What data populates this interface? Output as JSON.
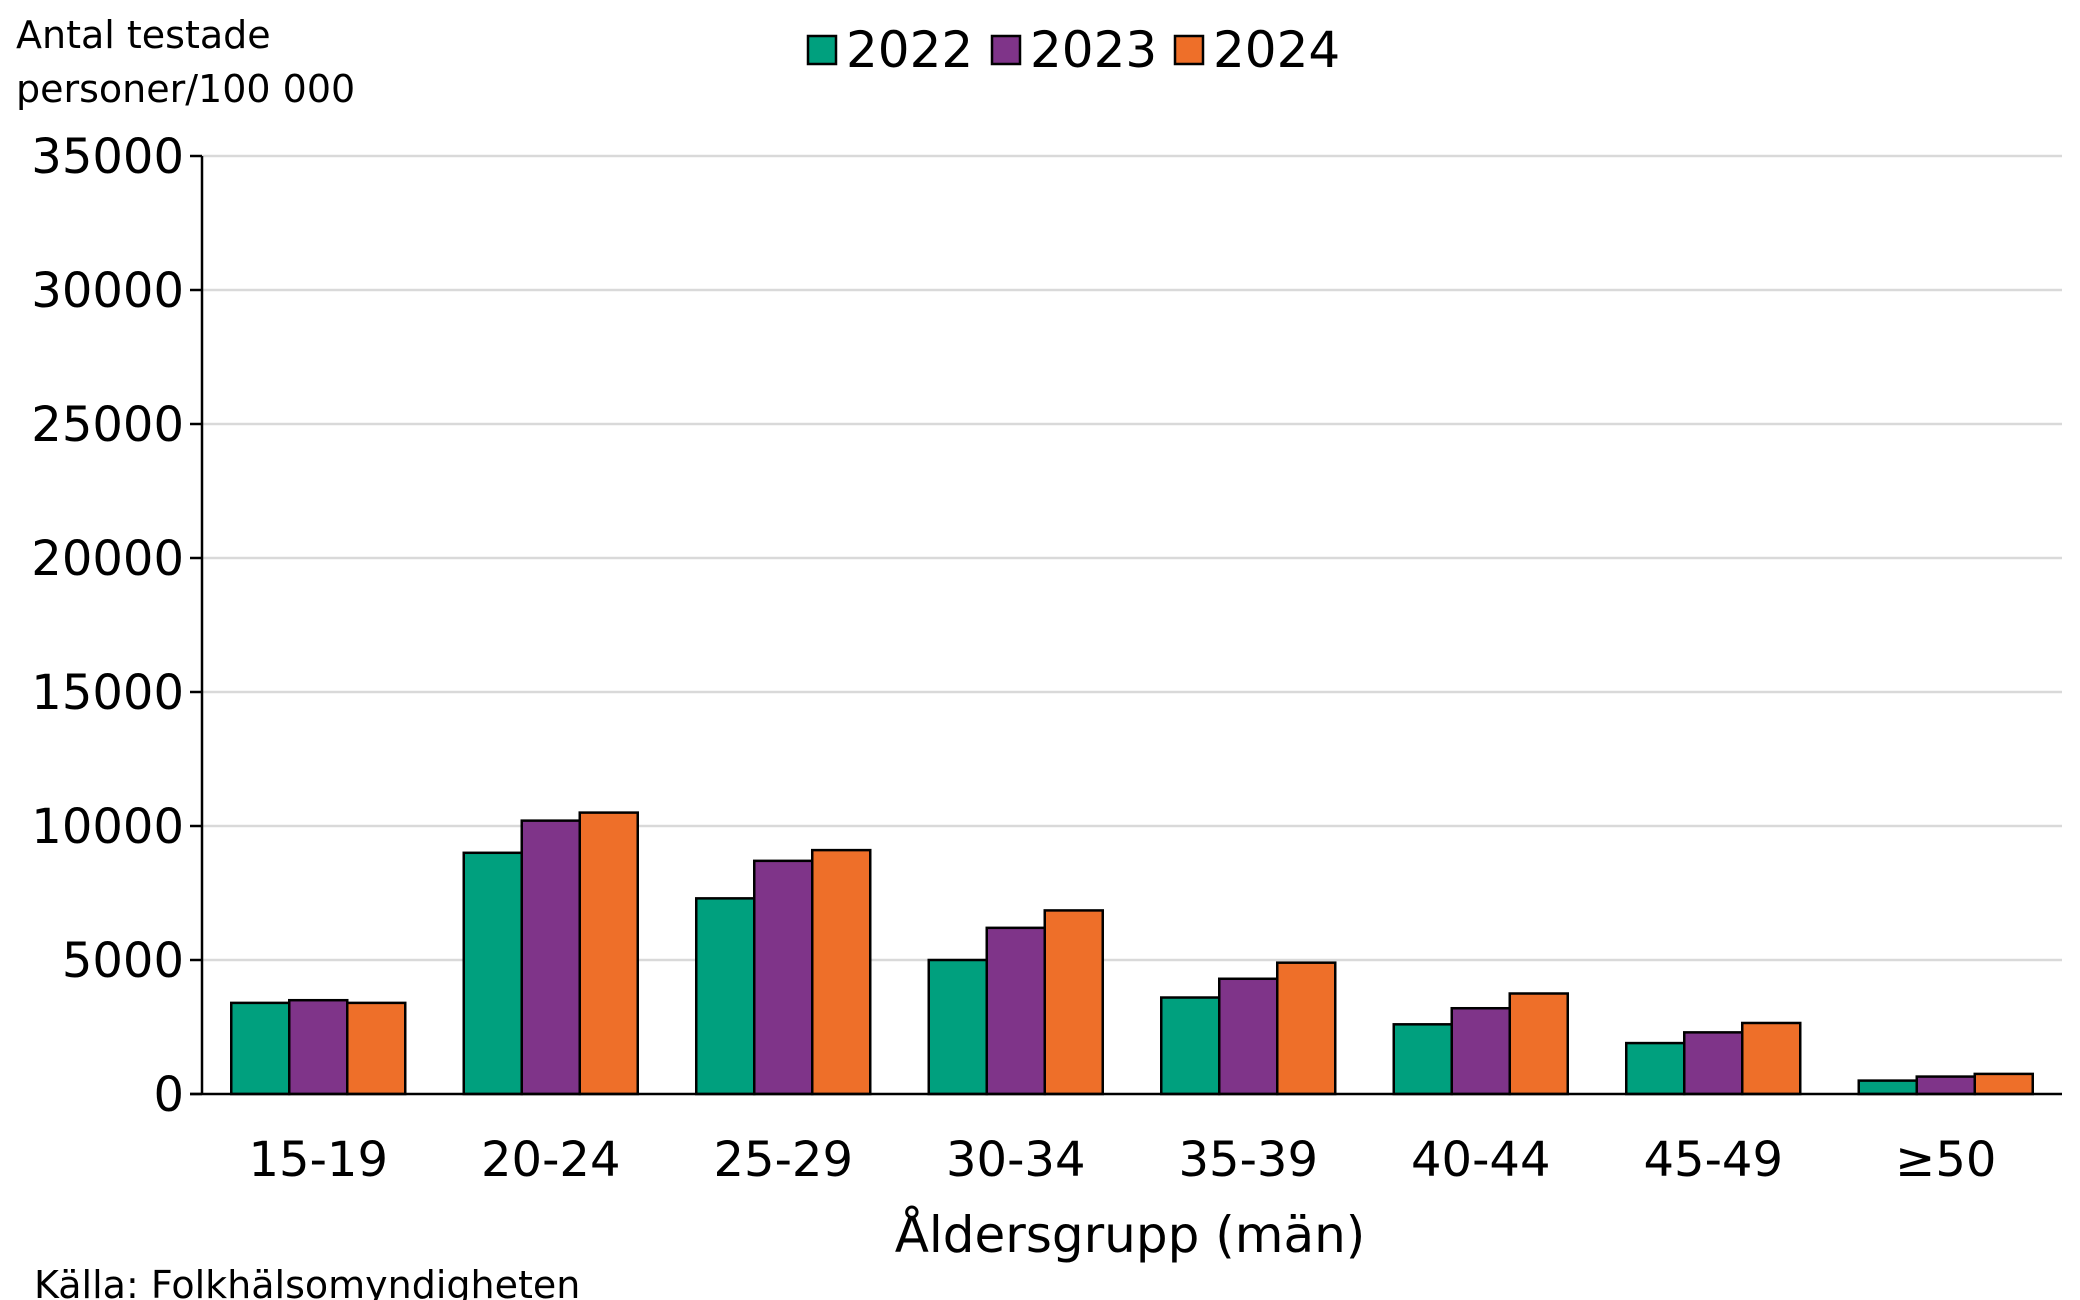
{
  "chart_data": {
    "type": "bar",
    "title": "",
    "ylabel_lines": [
      "Antal testade",
      "personer/100 000"
    ],
    "xlabel": "Åldersgrupp (män)",
    "source": "Källa: Folkhälsomyndigheten",
    "categories": [
      "15-19",
      "20-24",
      "25-29",
      "30-34",
      "35-39",
      "40-44",
      "45-49",
      "≥50"
    ],
    "series": [
      {
        "name": "2022",
        "color": "#00A07E",
        "values": [
          3400,
          9000,
          7300,
          5000,
          3600,
          2600,
          1900,
          500
        ]
      },
      {
        "name": "2023",
        "color": "#7F3489",
        "values": [
          3500,
          10200,
          8700,
          6200,
          4300,
          3200,
          2300,
          650
        ]
      },
      {
        "name": "2024",
        "color": "#EE6F29",
        "values": [
          3400,
          10500,
          9100,
          6850,
          4900,
          3750,
          2650,
          750
        ]
      }
    ],
    "ylim": [
      0,
      35000
    ],
    "yticks": [
      0,
      5000,
      10000,
      15000,
      20000,
      25000,
      30000,
      35000
    ],
    "grid": true,
    "legend_position": "top-center"
  }
}
